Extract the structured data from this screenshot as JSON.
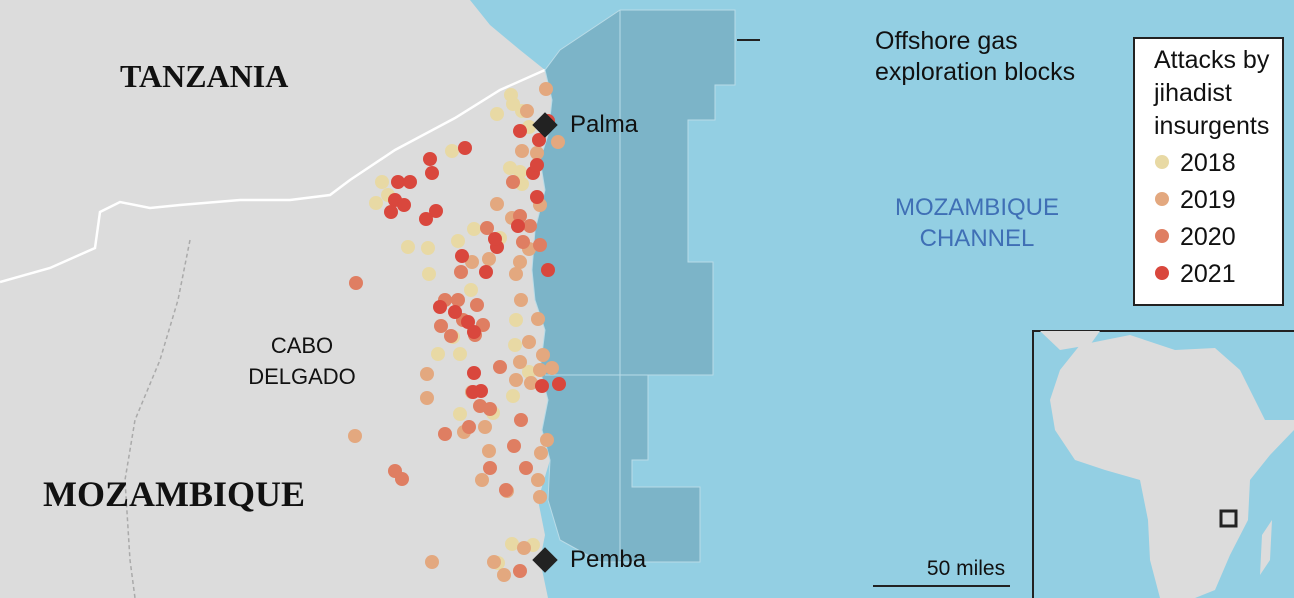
{
  "labels": {
    "tanzania": "TANZANIA",
    "mozambique": "MOZAMBIQUE",
    "province": [
      "CABO",
      "DELGADO"
    ],
    "channel": [
      "MOZAMBIQUE",
      "CHANNEL"
    ],
    "blocks": [
      "Offshore gas",
      "exploration blocks"
    ],
    "cities": [
      "Palma",
      "Pemba"
    ],
    "scale": "50 miles"
  },
  "legend": {
    "title": [
      "Attacks by",
      "jihadist",
      "insurgents"
    ],
    "items": [
      {
        "name": "2018",
        "color": "#e8d9a4"
      },
      {
        "name": "2019",
        "color": "#e3a87f"
      },
      {
        "name": "2020",
        "color": "#df7e62"
      },
      {
        "name": "2021",
        "color": "#d9473d"
      }
    ]
  }
}
